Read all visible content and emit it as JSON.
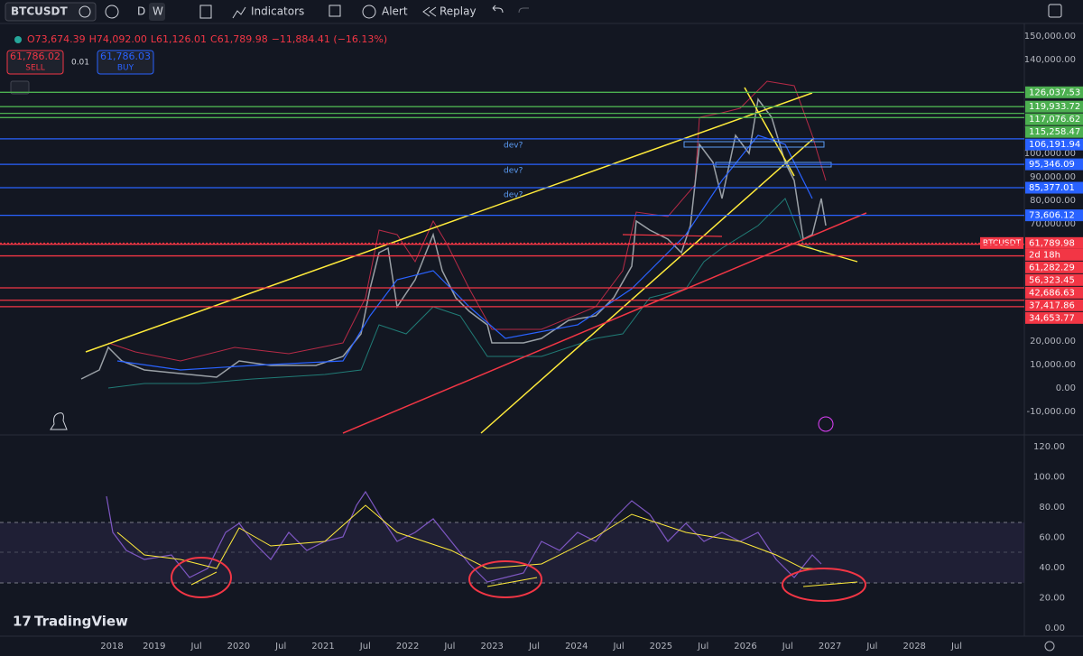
{
  "toolbar": {
    "symbol": "BTCUSDT",
    "intervals": [
      "D",
      "W"
    ],
    "indicators": "Indicators",
    "alert": "Alert",
    "replay": "Replay"
  },
  "legend": {
    "ohlc": [
      "O73,674.39",
      "H74,092.00",
      "L61,126.01",
      "C61,789.98",
      "−11,884.41 (−16.13%)"
    ],
    "sell_price": "61,786.02",
    "sell": "SELL",
    "quantity": "0.01",
    "buy_price": "61,786.03",
    "buy": "BUY"
  },
  "price_axis": {
    "ticks": [
      {
        "value": 150000,
        "label": "150,000.00"
      },
      {
        "value": 140000,
        "label": "140,000.00"
      },
      {
        "value": 110000,
        "label": "110,000.00"
      },
      {
        "value": 100000,
        "label": "100,000.00"
      },
      {
        "value": 90000,
        "label": "90,000.00"
      },
      {
        "value": 80000,
        "label": "80,000.00"
      },
      {
        "value": 70000,
        "label": "70,000.00"
      },
      {
        "value": 20000,
        "label": "20,000.00"
      },
      {
        "value": 10000,
        "label": "10,000.00"
      },
      {
        "value": 0,
        "label": "0.00"
      },
      {
        "value": -10000,
        "label": "-10,000.00"
      }
    ]
  },
  "levels": [
    {
      "value": 126037.53,
      "label": "126,037.53",
      "color": "#4caf50"
    },
    {
      "value": 119933.72,
      "label": "119,933.72",
      "color": "#4caf50"
    },
    {
      "value": 117076.62,
      "label": "117,076.62",
      "color": "#4caf50"
    },
    {
      "value": 115258.47,
      "label": "115,258.47",
      "color": "#4caf50"
    },
    {
      "value": 106191.94,
      "label": "106,191.94",
      "color": "#2962ff"
    },
    {
      "value": 95346.09,
      "label": "95,346.09",
      "color": "#2962ff"
    },
    {
      "value": 85377.01,
      "label": "85,377.01",
      "color": "#2962ff"
    },
    {
      "value": 73606.12,
      "label": "73,606.12",
      "color": "#2962ff"
    },
    {
      "value": 61282.29,
      "label": "61,282.29",
      "color": "#f23645"
    },
    {
      "value": 56323.45,
      "label": "56,323.45",
      "color": "#f23645"
    },
    {
      "value": 42686.63,
      "label": "42,686.63",
      "color": "#f23645"
    },
    {
      "value": 37417.86,
      "label": "37,417.86",
      "color": "#f23645"
    },
    {
      "value": 34653.77,
      "label": "34,653.77",
      "color": "#f23645"
    }
  ],
  "last_price": {
    "symbol": "BTCUSDT",
    "value": 61789.98,
    "label": "61,789.98",
    "countdown": "2d 18h",
    "color": "#f23645"
  },
  "annotations": [
    "dev?",
    "dev?",
    "dev?"
  ],
  "time_axis": [
    "2018",
    "2019",
    "Jul",
    "2020",
    "Jul",
    "2021",
    "Jul",
    "2022",
    "Jul",
    "2023",
    "Jul",
    "2024",
    "Jul",
    "2025",
    "Jul",
    "2026",
    "Jul",
    "2027",
    "Jul",
    "2028",
    "Jul"
  ],
  "rsi_axis": {
    "ticks": [
      {
        "value": 120,
        "label": "120.00"
      },
      {
        "value": 100,
        "label": "100.00"
      },
      {
        "value": 80,
        "label": "80.00"
      },
      {
        "value": 60,
        "label": "60.00"
      },
      {
        "value": 40,
        "label": "40.00"
      },
      {
        "value": 20,
        "label": "20.00"
      },
      {
        "value": 0,
        "label": "0.00"
      }
    ]
  },
  "brand": "TradingView"
}
